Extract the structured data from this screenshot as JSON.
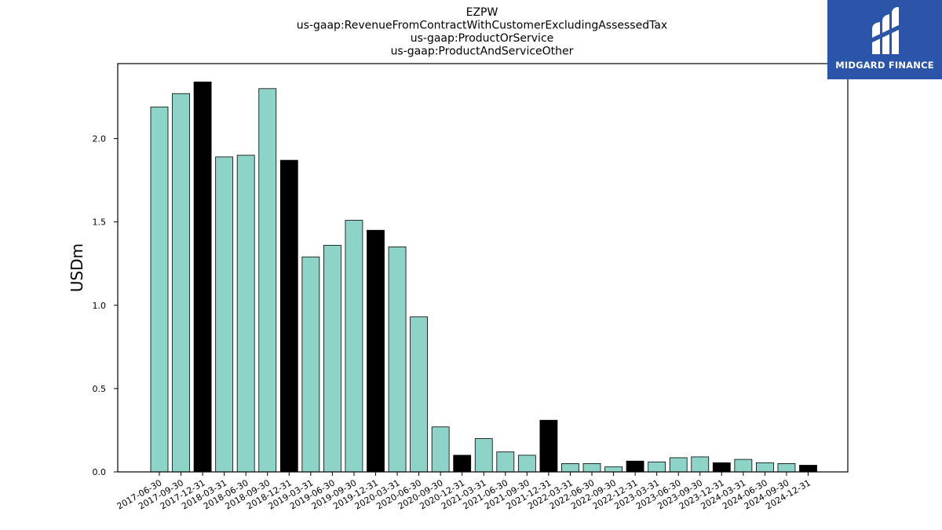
{
  "chart_data": {
    "type": "bar",
    "title_lines": [
      "EZPW",
      "us-gaap:RevenueFromContractWithCustomerExcludingAssessedTax",
      "us-gaap:ProductOrService",
      "us-gaap:ProductAndServiceOther"
    ],
    "xlabel": "",
    "ylabel": "USDm",
    "ylim": [
      0,
      2.45
    ],
    "yticks": [
      "0.0",
      "0.5",
      "1.0",
      "1.5",
      "2.0"
    ],
    "grid": false,
    "colors": {
      "quarter": "#8dd3c7",
      "year_end": "#000000",
      "edge": "#000000"
    },
    "categories": [
      "2017-06-30",
      "2017-09-30",
      "2017-12-31",
      "2018-03-31",
      "2018-06-30",
      "2018-09-30",
      "2018-12-31",
      "2019-03-31",
      "2019-06-30",
      "2019-09-30",
      "2019-12-31",
      "2020-03-31",
      "2020-06-30",
      "2020-09-30",
      "2020-12-31",
      "2021-03-31",
      "2021-06-30",
      "2021-09-30",
      "2021-12-31",
      "2022-03-31",
      "2022-06-30",
      "2022-09-30",
      "2022-12-31",
      "2023-03-31",
      "2023-06-30",
      "2023-09-30",
      "2023-12-31",
      "2024-03-31",
      "2024-06-30",
      "2024-09-30",
      "2024-12-31"
    ],
    "values": [
      2.19,
      2.27,
      2.34,
      1.89,
      1.9,
      2.3,
      1.87,
      1.29,
      1.36,
      1.51,
      1.45,
      1.35,
      0.93,
      0.27,
      0.1,
      0.2,
      0.12,
      0.1,
      0.31,
      0.05,
      0.05,
      0.03,
      0.065,
      0.06,
      0.085,
      0.09,
      0.055,
      0.075,
      0.055,
      0.05,
      0.04
    ],
    "highlight": [
      false,
      false,
      true,
      false,
      false,
      false,
      true,
      false,
      false,
      false,
      true,
      false,
      false,
      false,
      true,
      false,
      false,
      false,
      true,
      false,
      false,
      false,
      true,
      false,
      false,
      false,
      true,
      false,
      false,
      false,
      true
    ]
  },
  "logo": {
    "text": "MIDGARD FINANCE",
    "background": "#2a55a8",
    "icon": "midgard-logo-icon"
  }
}
